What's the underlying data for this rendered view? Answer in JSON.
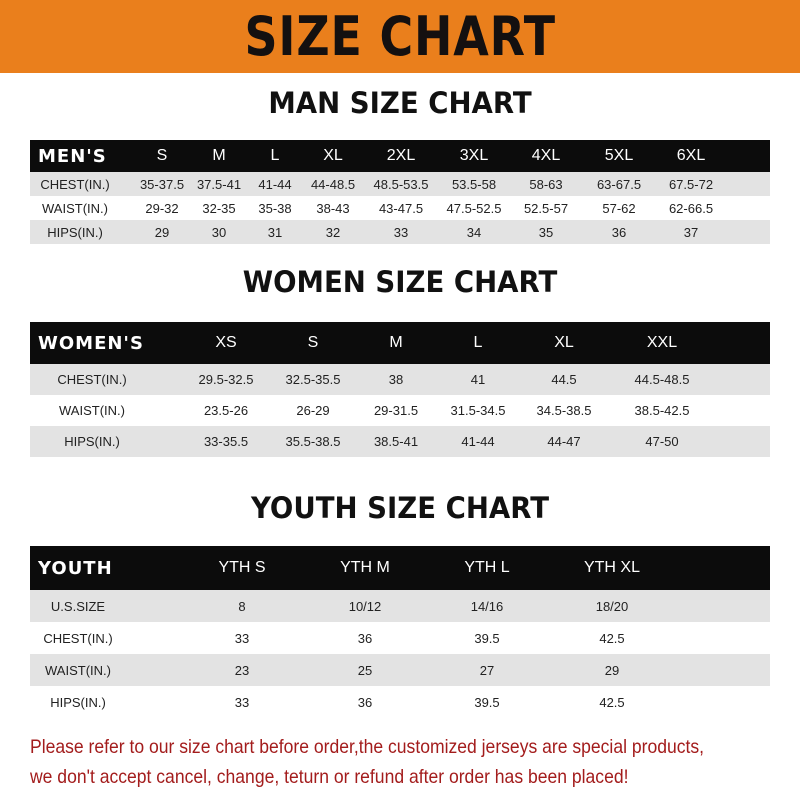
{
  "title": "SIZE CHART",
  "tables": [
    {
      "title": "MAN SIZE CHART",
      "header": [
        "MEN'S",
        "S",
        "M",
        "L",
        "XL",
        "2XL",
        "3XL",
        "4XL",
        "5XL",
        "6XL"
      ],
      "rows": [
        [
          "CHEST(IN.)",
          "35-37.5",
          "37.5-41",
          "41-44",
          "44-48.5",
          "48.5-53.5",
          "53.5-58",
          "58-63",
          "63-67.5",
          "67.5-72"
        ],
        [
          "WAIST(IN.)",
          "29-32",
          "32-35",
          "35-38",
          "38-43",
          "43-47.5",
          "47.5-52.5",
          "52.5-57",
          "57-62",
          "62-66.5"
        ],
        [
          "HIPS(IN.)",
          "29",
          "30",
          "31",
          "32",
          "33",
          "34",
          "35",
          "36",
          "37"
        ]
      ]
    },
    {
      "title": "WOMEN SIZE CHART",
      "header": [
        "WOMEN'S",
        "XS",
        "S",
        "M",
        "L",
        "XL",
        "XXL"
      ],
      "rows": [
        [
          "CHEST(IN.)",
          "29.5-32.5",
          "32.5-35.5",
          "38",
          "41",
          "44.5",
          "44.5-48.5"
        ],
        [
          "WAIST(IN.)",
          "23.5-26",
          "26-29",
          "29-31.5",
          "31.5-34.5",
          "34.5-38.5",
          "38.5-42.5"
        ],
        [
          "HIPS(IN.)",
          "33-35.5",
          "35.5-38.5",
          "38.5-41",
          "41-44",
          "44-47",
          "47-50"
        ]
      ]
    },
    {
      "title": "YOUTH SIZE CHART",
      "header": [
        "YOUTH",
        "YTH S",
        "YTH M",
        "YTH L",
        "YTH XL"
      ],
      "rows": [
        [
          "U.S.SIZE",
          "8",
          "10/12",
          "14/16",
          "18/20"
        ],
        [
          "CHEST(IN.)",
          "33",
          "36",
          "39.5",
          "42.5"
        ],
        [
          "WAIST(IN.)",
          "23",
          "25",
          "27",
          "29"
        ],
        [
          "HIPS(IN.)",
          "33",
          "36",
          "39.5",
          "42.5"
        ]
      ]
    }
  ],
  "footer": {
    "line1": "Please refer to our size chart before order,the customized jerseys are special products,",
    "line2": "we don't accept cancel, change, teturn or refund after order has been placed!"
  },
  "colors": {
    "banner": "#ea7f1c",
    "header_row": "#0c0c0c",
    "stripe": "#e3e3e3",
    "footer_text": "#a31c1c"
  }
}
